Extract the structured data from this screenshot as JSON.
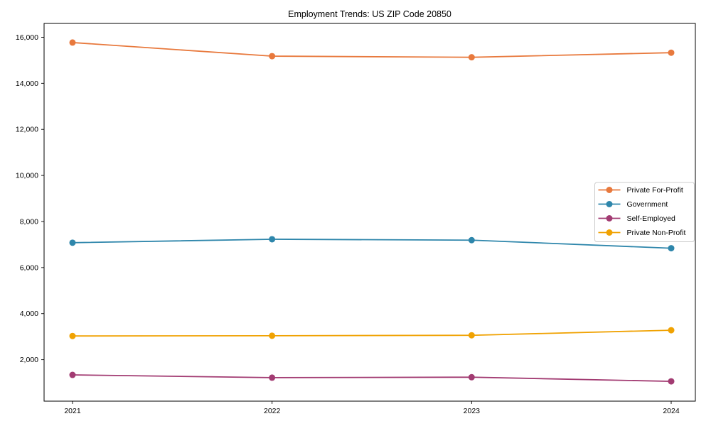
{
  "chart_data": {
    "type": "line",
    "title": "Employment Trends: US ZIP Code 20850",
    "xlabel": "",
    "ylabel": "",
    "x": [
      "2021",
      "2022",
      "2023",
      "2024"
    ],
    "series": [
      {
        "name": "Private For-Profit",
        "color": "#E8793D",
        "marker": "circle",
        "values": [
          15770,
          15180,
          15130,
          15330
        ]
      },
      {
        "name": "Government",
        "color": "#2E86AB",
        "marker": "circle",
        "values": [
          7080,
          7230,
          7190,
          6840
        ]
      },
      {
        "name": "Self-Employed",
        "color": "#A23B72",
        "marker": "circle",
        "values": [
          1340,
          1220,
          1240,
          1060
        ]
      },
      {
        "name": "Private Non-Profit",
        "color": "#F0A202",
        "marker": "circle",
        "values": [
          3030,
          3040,
          3060,
          3280
        ]
      }
    ],
    "yticks": [
      2000,
      4000,
      6000,
      8000,
      10000,
      12000,
      14000,
      16000
    ],
    "ylim": [
      200,
      16600
    ],
    "grid": false,
    "legend_position": "center-right",
    "frame_color": "#000000",
    "tick_label_color": "#000000",
    "legend_border_color": "#cccccc"
  }
}
